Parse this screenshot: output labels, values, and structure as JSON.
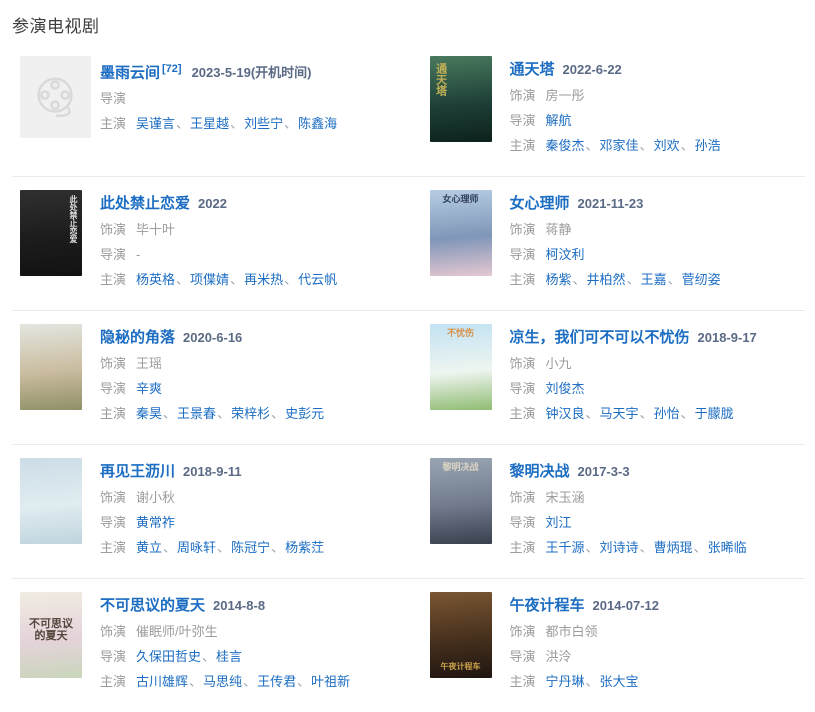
{
  "heading": "参演电视剧",
  "colors": {
    "link_blue": "#1c6dc2",
    "date_gray_blue": "#5a6a85",
    "muted_gray": "#9c9c9c",
    "divider": "#ebebeb",
    "heading_color": "#3d3d3d",
    "placeholder_bg": "#f0f0f0",
    "placeholder_icon": "#d9d9d9"
  },
  "labels": {
    "play_role": "饰演",
    "director": "导演",
    "starring": "主演",
    "separator": "、"
  },
  "entries": [
    {
      "title": "墨雨云间",
      "ref": "[72]",
      "date": "2023-5-19(开机时间)",
      "thumb": {
        "type": "placeholder",
        "icon": "film-reel"
      },
      "lines": [
        {
          "label": "导演",
          "items": []
        },
        {
          "label": "主演",
          "items": [
            {
              "text": "吴谨言",
              "link": true
            },
            {
              "text": "王星越",
              "link": true
            },
            {
              "text": "刘些宁",
              "link": true
            },
            {
              "text": "陈鑫海",
              "link": true
            }
          ]
        }
      ]
    },
    {
      "title": "通天塔",
      "ref": "",
      "date": "2022-6-22",
      "thumb": {
        "type": "poster",
        "colors": [
          "#4a7a5e",
          "#1e4038",
          "#0d211c"
        ],
        "overlay": {
          "text": "通天塔",
          "color": "#c9b457",
          "vertical": true,
          "pos": "tl"
        }
      },
      "lines": [
        {
          "label": "饰演",
          "items": [
            {
              "text": "房一彤",
              "link": false
            }
          ]
        },
        {
          "label": "导演",
          "items": [
            {
              "text": "解航",
              "link": true
            }
          ]
        },
        {
          "label": "主演",
          "items": [
            {
              "text": "秦俊杰",
              "link": true
            },
            {
              "text": "邓家佳",
              "link": true
            },
            {
              "text": "刘欢",
              "link": true
            },
            {
              "text": "孙浩",
              "link": true
            }
          ]
        }
      ]
    },
    {
      "title": "此处禁止恋爱",
      "ref": "",
      "date": "2022",
      "thumb": {
        "type": "poster",
        "colors": [
          "#303030",
          "#1c1c1c",
          "#121212"
        ],
        "overlay": {
          "text": "此处禁止恋爱",
          "color": "#e8e8e8",
          "vertical": true,
          "pos": "tr"
        }
      },
      "lines": [
        {
          "label": "饰演",
          "items": [
            {
              "text": "毕十叶",
              "link": false
            }
          ]
        },
        {
          "label": "导演",
          "items": [
            {
              "text": "-",
              "link": false
            }
          ]
        },
        {
          "label": "主演",
          "items": [
            {
              "text": "杨英格",
              "link": true
            },
            {
              "text": "项偞婧",
              "link": true
            },
            {
              "text": "再米热",
              "link": true
            },
            {
              "text": "代云帆",
              "link": true
            }
          ]
        }
      ]
    },
    {
      "title": "女心理师",
      "ref": "",
      "date": "2021-11-23",
      "thumb": {
        "type": "poster",
        "colors": [
          "#b6cde3",
          "#8096b8",
          "#e5c8d2"
        ],
        "overlay": {
          "text": "女心理师",
          "color": "#2b3a55",
          "vertical": false,
          "pos": "tc"
        }
      },
      "lines": [
        {
          "label": "饰演",
          "items": [
            {
              "text": "蒋静",
              "link": false
            }
          ]
        },
        {
          "label": "导演",
          "items": [
            {
              "text": "柯汶利",
              "link": true
            }
          ]
        },
        {
          "label": "主演",
          "items": [
            {
              "text": "杨紫",
              "link": true
            },
            {
              "text": "井柏然",
              "link": true
            },
            {
              "text": "王嘉",
              "link": true
            },
            {
              "text": "菅纫姿",
              "link": true
            }
          ]
        }
      ]
    },
    {
      "title": "隐秘的角落",
      "ref": "",
      "date": "2020-6-16",
      "thumb": {
        "type": "poster",
        "colors": [
          "#e3e6e0",
          "#cabc9f",
          "#8f9067"
        ]
      },
      "lines": [
        {
          "label": "饰演",
          "items": [
            {
              "text": "王瑶",
              "link": false
            }
          ]
        },
        {
          "label": "导演",
          "items": [
            {
              "text": "辛爽",
              "link": true
            }
          ]
        },
        {
          "label": "主演",
          "items": [
            {
              "text": "秦昊",
              "link": true
            },
            {
              "text": "王景春",
              "link": true
            },
            {
              "text": "荣梓杉",
              "link": true
            },
            {
              "text": "史彭元",
              "link": true
            }
          ]
        }
      ]
    },
    {
      "title": "凉生，我们可不可以不忧伤",
      "ref": "",
      "date": "2018-9-17",
      "thumb": {
        "type": "poster",
        "colors": [
          "#c2e2f3",
          "#eef5f0",
          "#8fbc72"
        ],
        "overlay": {
          "text": "不忧伤",
          "color": "#d98c3f",
          "vertical": false,
          "pos": "tc"
        }
      },
      "lines": [
        {
          "label": "饰演",
          "items": [
            {
              "text": "小九",
              "link": false
            }
          ]
        },
        {
          "label": "导演",
          "items": [
            {
              "text": "刘俊杰",
              "link": true
            }
          ]
        },
        {
          "label": "主演",
          "items": [
            {
              "text": "钟汉良",
              "link": true
            },
            {
              "text": "马天宇",
              "link": true
            },
            {
              "text": "孙怡",
              "link": true
            },
            {
              "text": "于朦胧",
              "link": true
            }
          ]
        }
      ]
    },
    {
      "title": "再见王沥川",
      "ref": "",
      "date": "2018-9-11",
      "thumb": {
        "type": "poster",
        "colors": [
          "#ccdde6",
          "#e0ecf0",
          "#bfd4de"
        ]
      },
      "lines": [
        {
          "label": "饰演",
          "items": [
            {
              "text": "谢小秋",
              "link": false
            }
          ]
        },
        {
          "label": "导演",
          "items": [
            {
              "text": "黄常祚",
              "link": true
            }
          ]
        },
        {
          "label": "主演",
          "items": [
            {
              "text": "黄立",
              "link": true
            },
            {
              "text": "周咏轩",
              "link": true
            },
            {
              "text": "陈冠宁",
              "link": true
            },
            {
              "text": "杨紫茳",
              "link": true
            }
          ]
        }
      ]
    },
    {
      "title": "黎明决战",
      "ref": "",
      "date": "2017-3-3",
      "thumb": {
        "type": "poster",
        "colors": [
          "#9aa5b3",
          "#707a8c",
          "#39404e"
        ],
        "overlay": {
          "text": "黎明决战",
          "color": "#ded7c5",
          "vertical": false,
          "pos": "tc"
        }
      },
      "lines": [
        {
          "label": "饰演",
          "items": [
            {
              "text": "宋玉涵",
              "link": false
            }
          ]
        },
        {
          "label": "导演",
          "items": [
            {
              "text": "刘江",
              "link": true
            }
          ]
        },
        {
          "label": "主演",
          "items": [
            {
              "text": "王千源",
              "link": true
            },
            {
              "text": "刘诗诗",
              "link": true
            },
            {
              "text": "曹炳琨",
              "link": true
            },
            {
              "text": "张晞临",
              "link": true
            }
          ]
        }
      ]
    },
    {
      "title": "不可思议的夏天",
      "ref": "",
      "date": "2014-8-8",
      "thumb": {
        "type": "poster",
        "colors": [
          "#f0ece1",
          "#e5d3da",
          "#c9d6bb"
        ],
        "overlay": {
          "text": "不可思议的夏天",
          "color": "#4a3f33",
          "vertical": false,
          "pos": "c"
        }
      },
      "lines": [
        {
          "label": "饰演",
          "items": [
            {
              "text": "催眠师/叶弥生",
              "link": false
            }
          ]
        },
        {
          "label": "导演",
          "items": [
            {
              "text": "久保田哲史",
              "link": true
            },
            {
              "text": "桂言",
              "link": true
            }
          ]
        },
        {
          "label": "主演",
          "items": [
            {
              "text": "古川雄辉",
              "link": true
            },
            {
              "text": "马思纯",
              "link": true
            },
            {
              "text": "王传君",
              "link": true
            },
            {
              "text": "叶祖新",
              "link": true
            }
          ]
        }
      ]
    },
    {
      "title": "午夜计程车",
      "ref": "",
      "date": "2014-07-12",
      "thumb": {
        "type": "poster",
        "colors": [
          "#7a5633",
          "#46301d",
          "#1f1510"
        ],
        "overlay": {
          "text": "午夜计程车",
          "color": "#d4a94e",
          "vertical": false,
          "pos": "b"
        }
      },
      "lines": [
        {
          "label": "饰演",
          "items": [
            {
              "text": "都市白领",
              "link": false
            }
          ]
        },
        {
          "label": "导演",
          "items": [
            {
              "text": "洪泠",
              "link": false
            }
          ]
        },
        {
          "label": "主演",
          "items": [
            {
              "text": "宁丹琳",
              "link": true
            },
            {
              "text": "张大宝",
              "link": true
            }
          ]
        }
      ]
    }
  ]
}
